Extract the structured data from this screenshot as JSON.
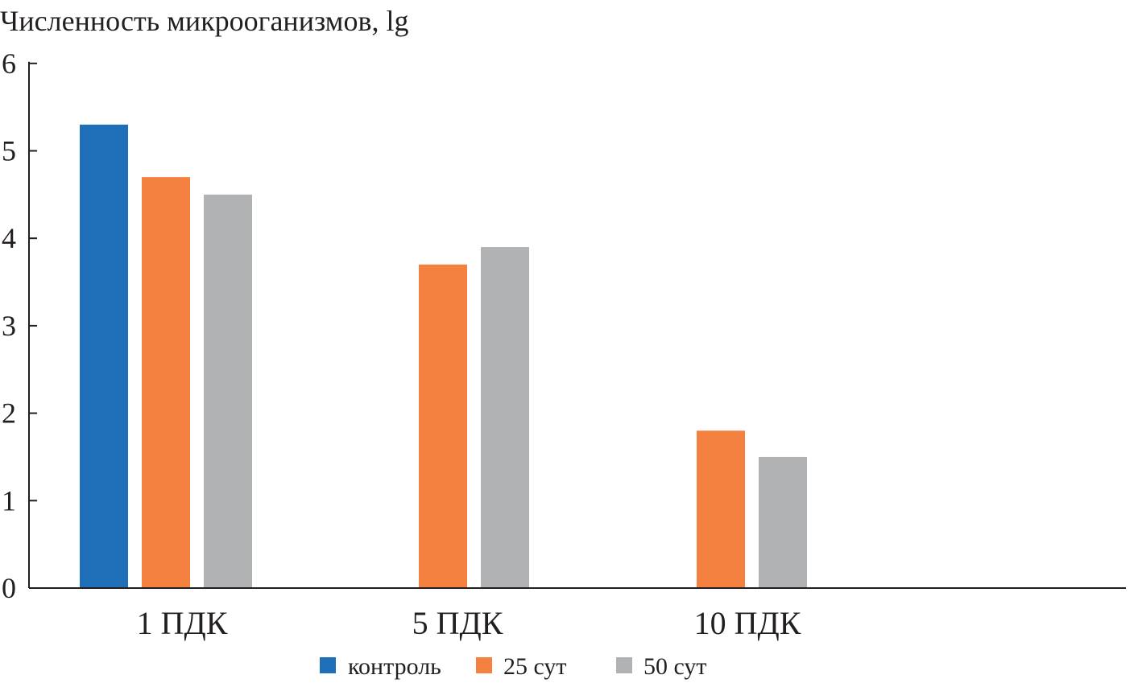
{
  "chart_data": {
    "type": "bar",
    "title": "",
    "ylabel": "Численность микрооганизмов, lg",
    "xlabel": "",
    "ylim": [
      0,
      6
    ],
    "yticks": [
      0,
      1,
      2,
      3,
      4,
      5,
      6
    ],
    "grid": false,
    "legend_position": "bottom",
    "categories": [
      "1 ПДК",
      "5 ПДК",
      "10 ПДК"
    ],
    "series": [
      {
        "name": "контроль",
        "color": "#1f6fb8",
        "values": [
          5.3,
          null,
          null
        ]
      },
      {
        "name": "25 сут",
        "color": "#f58140",
        "values": [
          4.7,
          3.7,
          1.8
        ]
      },
      {
        "name": "50 сут",
        "color": "#b1b2b4",
        "values": [
          4.5,
          3.9,
          1.5
        ]
      }
    ]
  }
}
